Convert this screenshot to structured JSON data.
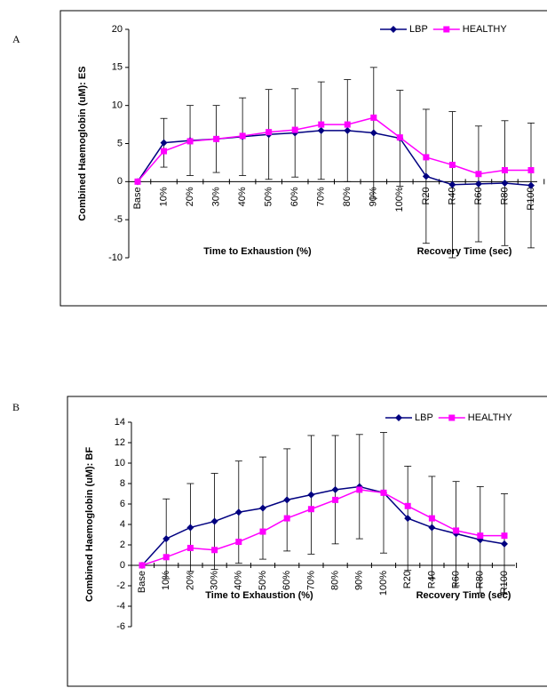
{
  "chart_data": [
    {
      "type": "line",
      "label": "A",
      "ylabel": "Combined Haemoglobin (uM): ES",
      "x_group_labels": [
        "Time to Exhaustion (%)",
        "Recovery Time (sec)"
      ],
      "categories": [
        "Base",
        "10%",
        "20%",
        "30%",
        "40%",
        "50%",
        "60%",
        "70%",
        "80%",
        "90%",
        "100%",
        "R20",
        "R40",
        "R60",
        "R80",
        "R100"
      ],
      "series": [
        {
          "name": "LBP",
          "color": "#000080",
          "marker": "diamond",
          "values": [
            0,
            5.1,
            5.4,
            5.6,
            5.9,
            6.2,
            6.4,
            6.7,
            6.7,
            6.4,
            5.7,
            0.7,
            -0.4,
            -0.3,
            -0.2,
            -0.5
          ],
          "errors": [
            0,
            3.2,
            4.6,
            4.4,
            5.1,
            5.9,
            5.8,
            6.4,
            6.7,
            8.6,
            6.3,
            8.8,
            9.6,
            7.6,
            8.2,
            8.2
          ]
        },
        {
          "name": "HEALTHY",
          "color": "#ff00ff",
          "marker": "square",
          "values": [
            0,
            4.0,
            5.3,
            5.6,
            6.0,
            6.5,
            6.8,
            7.5,
            7.5,
            8.4,
            5.8,
            3.2,
            2.2,
            1.0,
            1.5,
            1.5
          ]
        }
      ],
      "ylim": [
        -10,
        20
      ],
      "yticks": [
        -10,
        -5,
        0,
        5,
        10,
        15,
        20
      ],
      "legend": "top-right"
    },
    {
      "type": "line",
      "label": "B",
      "ylabel": "Combined Haemoglobin (uM): BF",
      "x_group_labels": [
        "Time to Exhaustion (%)",
        "Recovery Time (sec)"
      ],
      "categories": [
        "Base",
        "10%",
        "20%",
        "30%",
        "40%",
        "50%",
        "60%",
        "70%",
        "80%",
        "90%",
        "100%",
        "R20",
        "R40",
        "R60",
        "R80",
        "R100"
      ],
      "series": [
        {
          "name": "LBP",
          "color": "#000080",
          "marker": "diamond",
          "values": [
            0,
            2.6,
            3.7,
            4.3,
            5.2,
            5.6,
            6.4,
            6.9,
            7.4,
            7.7,
            7.1,
            4.6,
            3.7,
            3.1,
            2.5,
            2.1
          ],
          "errors": [
            0,
            3.9,
            4.3,
            4.7,
            5.0,
            5.0,
            5.0,
            5.8,
            5.3,
            5.1,
            5.9,
            5.1,
            5.0,
            5.1,
            5.2,
            4.9
          ]
        },
        {
          "name": "HEALTHY",
          "color": "#ff00ff",
          "marker": "square",
          "values": [
            0,
            0.8,
            1.7,
            1.5,
            2.3,
            3.3,
            4.6,
            5.5,
            6.4,
            7.4,
            7.1,
            5.8,
            4.6,
            3.4,
            2.9,
            2.9
          ]
        }
      ],
      "ylim": [
        -6,
        14
      ],
      "yticks": [
        -6,
        -4,
        -2,
        0,
        2,
        4,
        6,
        8,
        10,
        12,
        14
      ],
      "legend": "top-right"
    }
  ]
}
